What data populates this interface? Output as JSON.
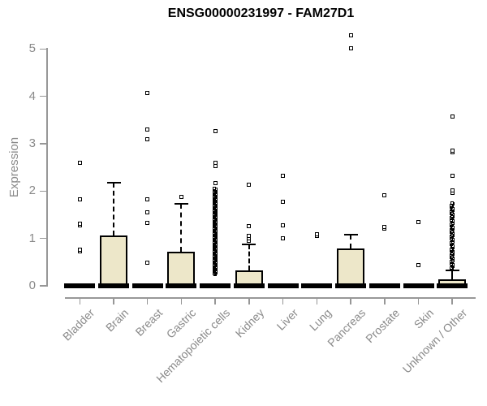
{
  "title": "ENSG00000231997 - FAM27D1",
  "style": {
    "box_fill": "#EDE7C9",
    "box_border": "#000000",
    "axis_color": "#979797",
    "label_color": "#8a8a8a",
    "title_color": "#000000"
  },
  "chart_data": {
    "type": "boxplot",
    "title": "ENSG00000231997 - FAM27D1",
    "xlabel": "",
    "ylabel": "Expression",
    "ylim": [
      0,
      5
    ],
    "yticks": [
      0,
      1,
      2,
      3,
      4,
      5
    ],
    "grid": false,
    "legend": "none",
    "marker": "open-square",
    "categories": [
      "Bladder",
      "Brain",
      "Breast",
      "Gastric",
      "Hematopoietic cells",
      "Kidney",
      "Liver",
      "Lung",
      "Pancreas",
      "Prostate",
      "Skin",
      "Unknown / Other"
    ],
    "boxes": [
      {
        "category": "Bladder",
        "q1": 0,
        "median": 0,
        "q3": 0,
        "whisker_low": 0,
        "whisker_high": 0,
        "outliers": [
          0.73,
          0.77,
          1.27,
          1.31,
          1.82,
          2.59
        ]
      },
      {
        "category": "Brain",
        "q1": 0,
        "median": 0,
        "q3": 1.07,
        "whisker_low": 0,
        "whisker_high": 2.17,
        "outliers": []
      },
      {
        "category": "Breast",
        "q1": 0,
        "median": 0,
        "q3": 0,
        "whisker_low": 0,
        "whisker_high": 0,
        "outliers": [
          0.48,
          1.32,
          1.55,
          1.83,
          3.09,
          3.3,
          4.07
        ]
      },
      {
        "category": "Gastric",
        "q1": 0,
        "median": 0,
        "q3": 0.72,
        "whisker_low": 0,
        "whisker_high": 1.73,
        "outliers": [
          1.87
        ]
      },
      {
        "category": "Hematopoietic cells",
        "q1": 0,
        "median": 0,
        "q3": 0,
        "whisker_low": 0,
        "whisker_high": 0,
        "outliers": [
          2.17,
          2.52,
          2.6,
          3.27
        ],
        "outlier_strip": {
          "min": 0.24,
          "max": 2.05,
          "step": 0.016
        }
      },
      {
        "category": "Kidney",
        "q1": 0,
        "median": 0,
        "q3": 0.33,
        "whisker_low": 0,
        "whisker_high": 0.87,
        "outliers": [
          0.95,
          1.0,
          1.05,
          1.26,
          2.13
        ]
      },
      {
        "category": "Liver",
        "q1": 0,
        "median": 0,
        "q3": 0,
        "whisker_low": 0,
        "whisker_high": 0,
        "outliers": [
          1.0,
          1.27,
          1.78,
          2.32
        ]
      },
      {
        "category": "Lung",
        "q1": 0,
        "median": 0,
        "q3": 0,
        "whisker_low": 0,
        "whisker_high": 0,
        "outliers": [
          1.05,
          1.08
        ]
      },
      {
        "category": "Pancreas",
        "q1": 0,
        "median": 0,
        "q3": 0.78,
        "whisker_low": 0,
        "whisker_high": 1.08,
        "outliers": [
          5.02,
          5.28
        ]
      },
      {
        "category": "Prostate",
        "q1": 0,
        "median": 0,
        "q3": 0,
        "whisker_low": 0,
        "whisker_high": 0,
        "outliers": [
          1.2,
          1.25,
          1.91
        ]
      },
      {
        "category": "Skin",
        "q1": 0,
        "median": 0,
        "q3": 0,
        "whisker_low": 0,
        "whisker_high": 0,
        "outliers": [
          0.44,
          1.35
        ]
      },
      {
        "category": "Unknown / Other",
        "q1": 0,
        "median": 0,
        "q3": 0.13,
        "whisker_low": 0,
        "whisker_high": 0.33,
        "outliers": [
          1.97,
          2.02,
          2.32,
          2.82,
          2.86,
          3.57
        ],
        "outlier_strip": {
          "min": 0.36,
          "max": 1.76,
          "step": 0.022
        }
      }
    ]
  }
}
